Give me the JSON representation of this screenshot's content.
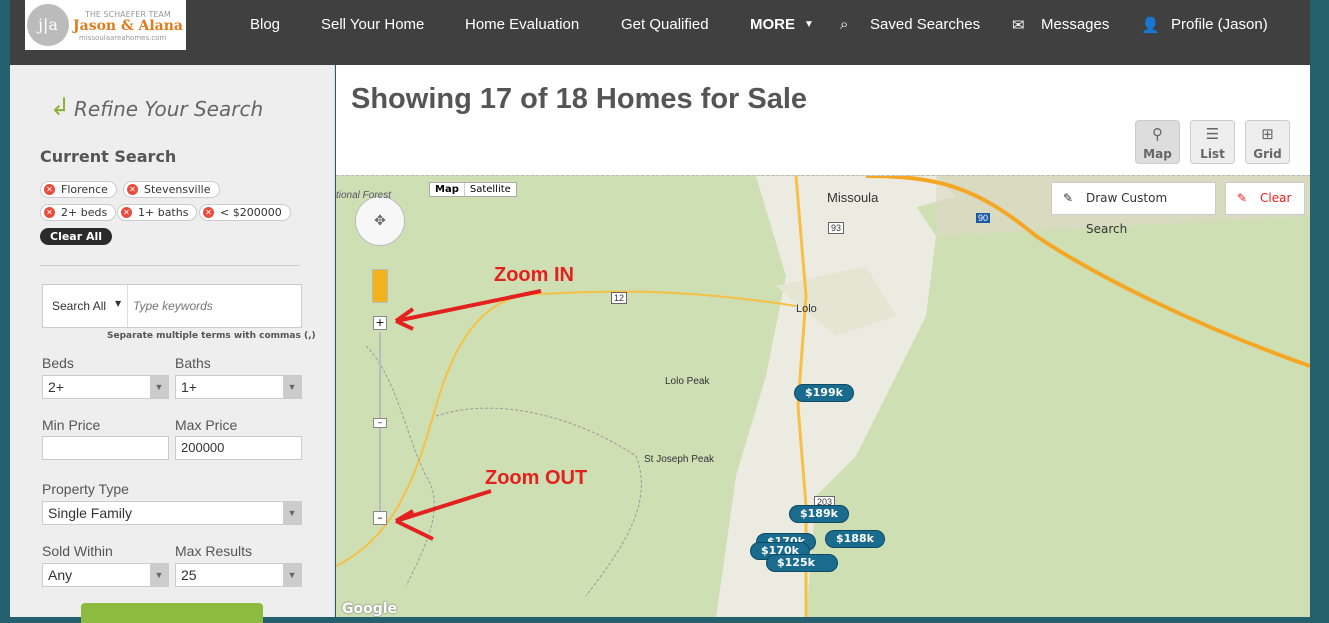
{
  "header": {
    "logo": {
      "initials": "j|a",
      "team": "THE SCHAEFER TEAM",
      "names": "Jason & Alana",
      "site": "missoulaareahomes.com"
    },
    "nav": [
      "Blog",
      "Sell Your Home",
      "Home Evaluation",
      "Get Qualified",
      "MORE",
      "Saved Searches",
      "Messages",
      "Profile (Jason)"
    ]
  },
  "sidebar": {
    "title": "Refine Your Search",
    "current_search": "Current Search",
    "chips": [
      "Florence",
      "Stevensville",
      "2+ beds",
      "1+ baths",
      "< $200000"
    ],
    "clear_all": "Clear All",
    "search_scope": "Search All",
    "keyword_placeholder": "Type keywords",
    "keyword_hint": "Separate multiple terms with commas (,)",
    "beds_label": "Beds",
    "beds": "2+",
    "baths_label": "Baths",
    "baths": "1+",
    "min_price_label": "Min Price",
    "min_price": "",
    "max_price_label": "Max Price",
    "max_price": "200000",
    "property_type_label": "Property Type",
    "property_type": "Single Family",
    "sold_within_label": "Sold Within",
    "sold_within": "Any",
    "max_results_label": "Max Results",
    "max_results": "25"
  },
  "main": {
    "title": "Showing 17 of 18 Homes for Sale",
    "views": [
      "Map",
      "List",
      "Grid"
    ],
    "active_view": "Map"
  },
  "map": {
    "type_buttons": [
      "Map",
      "Satellite"
    ],
    "draw_button": "Draw Custom Search",
    "clear_button": "Clear",
    "places": [
      "Missoula",
      "Lolo",
      "Lolo Peak",
      "St Joseph Peak",
      "tional Forest"
    ],
    "highways": [
      "93",
      "12",
      "90",
      "203"
    ],
    "prices": [
      "$199k",
      "$189k",
      "$188k",
      "$170k",
      "$170k",
      "$125k"
    ],
    "annotations": [
      "Zoom IN",
      "Zoom OUT"
    ],
    "attribution": "Google"
  }
}
